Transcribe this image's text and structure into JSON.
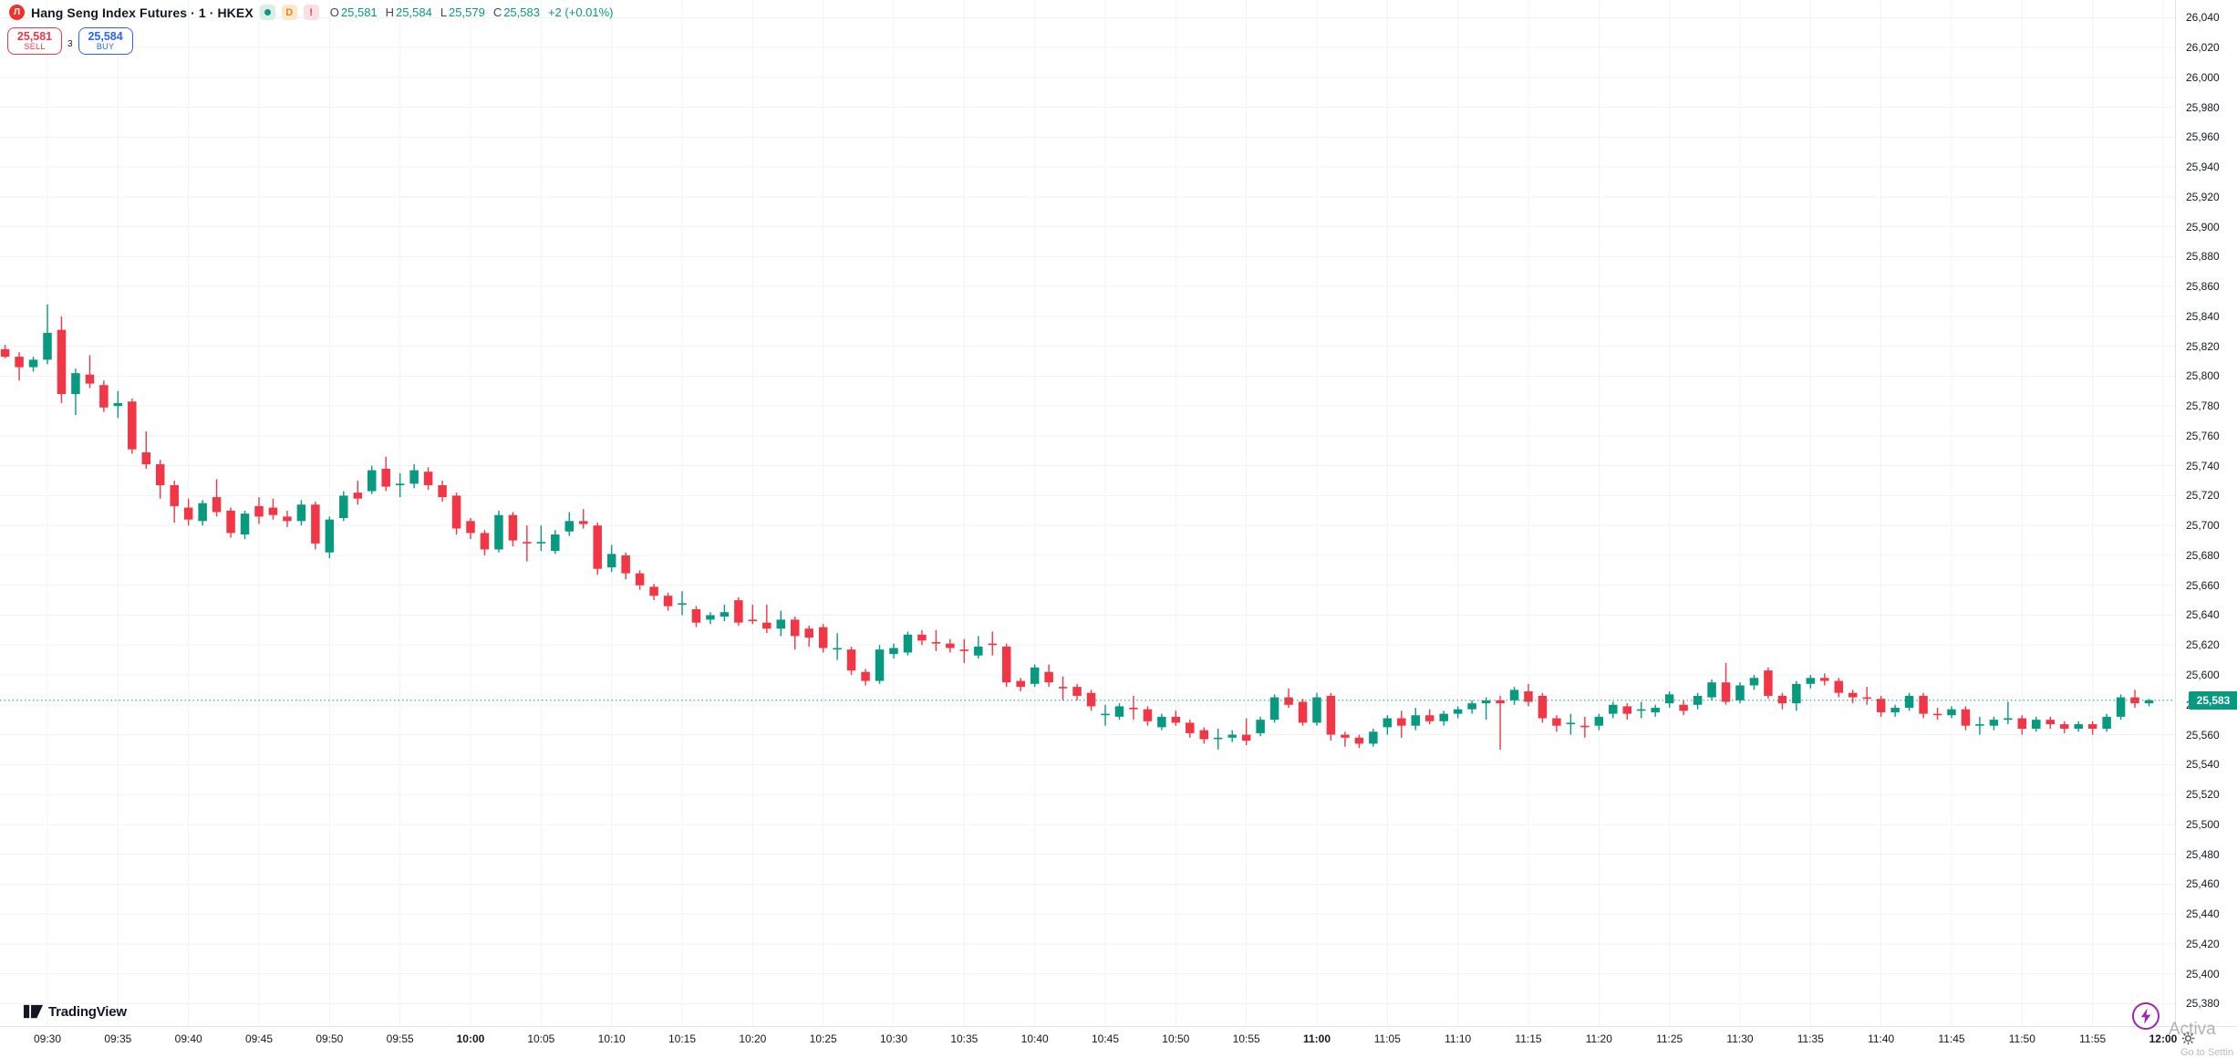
{
  "header": {
    "logo_glyph": "Л",
    "symbol_title": "Hang Seng Index Futures · 1 · HKEX",
    "badges": {
      "interval": "D",
      "alert": "!"
    },
    "ohlc": {
      "o_label": "O",
      "o": "25,581",
      "h_label": "H",
      "h": "25,584",
      "l_label": "L",
      "l": "25,579",
      "c_label": "C",
      "c": "25,583",
      "change": "+2 (+0.01%)"
    }
  },
  "order_panel": {
    "sell_price": "25,581",
    "sell_label": "SELL",
    "spread": "3",
    "buy_price": "25,584",
    "buy_label": "BUY"
  },
  "price_axis": {
    "min": 25380,
    "max": 26040,
    "step": 20,
    "current_price_label": "25,583"
  },
  "time_axis": {
    "labels": [
      "09:30",
      "09:35",
      "09:40",
      "09:45",
      "09:50",
      "09:55",
      "10:00",
      "10:05",
      "10:10",
      "10:15",
      "10:20",
      "10:25",
      "10:30",
      "10:35",
      "10:40",
      "10:45",
      "10:50",
      "10:55",
      "11:00",
      "11:05",
      "11:10",
      "11:15",
      "11:20",
      "11:25",
      "11:30",
      "11:35",
      "11:40",
      "11:45",
      "11:50",
      "11:55",
      "12:00"
    ],
    "bold_labels": [
      "10:00",
      "11:00",
      "12:00"
    ]
  },
  "footer": {
    "brand": "TradingView"
  },
  "watermark": {
    "line1": "Activa",
    "line2": "Go to Settin"
  },
  "colors": {
    "up": "#089981",
    "down": "#f23645",
    "buy_blue": "#2962ff",
    "sell_red": "#f23645",
    "grid": "#f0f3fa",
    "axis_text": "#131722",
    "current_price_bg": "#089981",
    "status_purple": "#9c27b0"
  },
  "chart_data": {
    "type": "candlestick",
    "title": "Hang Seng Index Futures",
    "interval": "1",
    "exchange": "HKEX",
    "x_range": [
      "09:27",
      "11:59"
    ],
    "y_range": [
      25380,
      26040
    ],
    "grid": true,
    "last_price": 25583,
    "columns": [
      "time",
      "open",
      "high",
      "low",
      "close"
    ],
    "candles": [
      [
        "09:27",
        25818,
        25821,
        25812,
        25813
      ],
      [
        "09:28",
        25813,
        25816,
        25797,
        25806
      ],
      [
        "09:29",
        25806,
        25813,
        25803,
        25811
      ],
      [
        "09:30",
        25811,
        25848,
        25808,
        25829
      ],
      [
        "09:31",
        25831,
        25840,
        25782,
        25788
      ],
      [
        "09:32",
        25788,
        25805,
        25774,
        25802
      ],
      [
        "09:33",
        25801,
        25814,
        25792,
        25795
      ],
      [
        "09:34",
        25794,
        25797,
        25776,
        25779
      ],
      [
        "09:35",
        25780,
        25790,
        25772,
        25782
      ],
      [
        "09:36",
        25783,
        25785,
        25748,
        25751
      ],
      [
        "09:37",
        25749,
        25763,
        25738,
        25741
      ],
      [
        "09:38",
        25741,
        25744,
        25718,
        25727
      ],
      [
        "09:39",
        25727,
        25730,
        25702,
        25713
      ],
      [
        "09:40",
        25712,
        25718,
        25700,
        25704
      ],
      [
        "09:41",
        25703,
        25717,
        25700,
        25715
      ],
      [
        "09:42",
        25719,
        25731,
        25706,
        25709
      ],
      [
        "09:43",
        25710,
        25712,
        25692,
        25695
      ],
      [
        "09:44",
        25694,
        25710,
        25691,
        25708
      ],
      [
        "09:45",
        25713,
        25719,
        25701,
        25706
      ],
      [
        "09:46",
        25712,
        25718,
        25704,
        25707
      ],
      [
        "09:47",
        25706,
        25710,
        25699,
        25703
      ],
      [
        "09:48",
        25703,
        25717,
        25700,
        25714
      ],
      [
        "09:49",
        25714,
        25716,
        25684,
        25688
      ],
      [
        "09:50",
        25682,
        25706,
        25678,
        25704
      ],
      [
        "09:51",
        25705,
        25723,
        25703,
        25720
      ],
      [
        "09:52",
        25722,
        25730,
        25714,
        25718
      ],
      [
        "09:53",
        25723,
        25740,
        25721,
        25737
      ],
      [
        "09:54",
        25738,
        25746,
        25723,
        25726
      ],
      [
        "09:55",
        25727,
        25735,
        25719,
        25728
      ],
      [
        "09:56",
        25728,
        25741,
        25725,
        25737
      ],
      [
        "09:57",
        25736,
        25739,
        25724,
        25727
      ],
      [
        "09:58",
        25727,
        25730,
        25716,
        25719
      ],
      [
        "09:59",
        25720,
        25722,
        25694,
        25698
      ],
      [
        "10:00",
        25703,
        25705,
        25691,
        25695
      ],
      [
        "10:01",
        25695,
        25697,
        25680,
        25684
      ],
      [
        "10:02",
        25684,
        25710,
        25682,
        25707
      ],
      [
        "10:03",
        25707,
        25709,
        25686,
        25690
      ],
      [
        "10:04",
        25689,
        25700,
        25676,
        25688
      ],
      [
        "10:05",
        25688,
        25700,
        25683,
        25689
      ],
      [
        "10:06",
        25683,
        25697,
        25681,
        25694
      ],
      [
        "10:07",
        25696,
        25709,
        25693,
        25703
      ],
      [
        "10:08",
        25703,
        25711,
        25698,
        25701
      ],
      [
        "10:09",
        25700,
        25702,
        25667,
        25671
      ],
      [
        "10:10",
        25672,
        25687,
        25669,
        25681
      ],
      [
        "10:11",
        25680,
        25682,
        25664,
        25668
      ],
      [
        "10:12",
        25668,
        25670,
        25657,
        25660
      ],
      [
        "10:13",
        25659,
        25661,
        25650,
        25653
      ],
      [
        "10:14",
        25653,
        25655,
        25643,
        25646
      ],
      [
        "10:15",
        25647,
        25656,
        25640,
        25648
      ],
      [
        "10:16",
        25644,
        25646,
        25632,
        25635
      ],
      [
        "10:17",
        25637,
        25642,
        25634,
        25640
      ],
      [
        "10:18",
        25639,
        25647,
        25636,
        25642
      ],
      [
        "10:19",
        25650,
        25652,
        25633,
        25635
      ],
      [
        "10:20",
        25637,
        25647,
        25634,
        25636
      ],
      [
        "10:21",
        25635,
        25647,
        25628,
        25631
      ],
      [
        "10:22",
        25631,
        25643,
        25626,
        25637
      ],
      [
        "10:23",
        25637,
        25639,
        25617,
        25626
      ],
      [
        "10:24",
        25631,
        25633,
        25619,
        25625
      ],
      [
        "10:25",
        25632,
        25634,
        25615,
        25618
      ],
      [
        "10:26",
        25617,
        25628,
        25610,
        25618
      ],
      [
        "10:27",
        25617,
        25619,
        25600,
        25603
      ],
      [
        "10:28",
        25602,
        25604,
        25593,
        25596
      ],
      [
        "10:29",
        25596,
        25620,
        25594,
        25617
      ],
      [
        "10:30",
        25614,
        25621,
        25611,
        25618
      ],
      [
        "10:31",
        25615,
        25629,
        25613,
        25627
      ],
      [
        "10:32",
        25627,
        25630,
        25620,
        25623
      ],
      [
        "10:33",
        25622,
        25630,
        25616,
        25621
      ],
      [
        "10:34",
        25621,
        25624,
        25615,
        25618
      ],
      [
        "10:35",
        25617,
        25624,
        25608,
        25616
      ],
      [
        "10:36",
        25613,
        25626,
        25611,
        25619
      ],
      [
        "10:37",
        25621,
        25629,
        25613,
        25620
      ],
      [
        "10:38",
        25619,
        25621,
        25592,
        25595
      ],
      [
        "10:39",
        25596,
        25598,
        25589,
        25592
      ],
      [
        "10:40",
        25594,
        25607,
        25592,
        25605
      ],
      [
        "10:41",
        25602,
        25607,
        25592,
        25595
      ],
      [
        "10:42",
        25592,
        25599,
        25583,
        25591
      ],
      [
        "10:43",
        25592,
        25594,
        25583,
        25586
      ],
      [
        "10:44",
        25588,
        25590,
        25576,
        25579
      ],
      [
        "10:45",
        25573,
        25580,
        25566,
        25574
      ],
      [
        "10:46",
        25572,
        25581,
        25570,
        25579
      ],
      [
        "10:47",
        25578,
        25586,
        25570,
        25577
      ],
      [
        "10:48",
        25577,
        25579,
        25566,
        25569
      ],
      [
        "10:49",
        25565,
        25574,
        25563,
        25572
      ],
      [
        "10:50",
        25572,
        25576,
        25566,
        25568
      ],
      [
        "10:51",
        25568,
        25570,
        25558,
        25561
      ],
      [
        "10:52",
        25563,
        25565,
        25554,
        25557
      ],
      [
        "10:53",
        25557,
        25564,
        25550,
        25558
      ],
      [
        "10:54",
        25558,
        25563,
        25555,
        25560
      ],
      [
        "10:55",
        25560,
        25571,
        25553,
        25556
      ],
      [
        "10:56",
        25561,
        25572,
        25559,
        25570
      ],
      [
        "10:57",
        25570,
        25587,
        25568,
        25585
      ],
      [
        "10:58",
        25585,
        25591,
        25578,
        25580
      ],
      [
        "10:59",
        25582,
        25584,
        25566,
        25568
      ],
      [
        "11:00",
        25568,
        25588,
        25566,
        25585
      ],
      [
        "11:01",
        25586,
        25588,
        25556,
        25560
      ],
      [
        "11:02",
        25560,
        25562,
        25552,
        25558
      ],
      [
        "11:03",
        25558,
        25560,
        25551,
        25554
      ],
      [
        "11:04",
        25554,
        25564,
        25552,
        25562
      ],
      [
        "11:05",
        25565,
        25573,
        25560,
        25571
      ],
      [
        "11:06",
        25571,
        25576,
        25558,
        25566
      ],
      [
        "11:07",
        25566,
        25578,
        25563,
        25573
      ],
      [
        "11:08",
        25573,
        25577,
        25567,
        25569
      ],
      [
        "11:09",
        25569,
        25576,
        25566,
        25574
      ],
      [
        "11:10",
        25574,
        25579,
        25571,
        25577
      ],
      [
        "11:11",
        25577,
        25583,
        25574,
        25581
      ],
      [
        "11:12",
        25581,
        25585,
        25570,
        25583
      ],
      [
        "11:13",
        25583,
        25586,
        25550,
        25581
      ],
      [
        "11:14",
        25583,
        25592,
        25580,
        25590
      ],
      [
        "11:15",
        25589,
        25594,
        25579,
        25582
      ],
      [
        "11:16",
        25586,
        25588,
        25568,
        25571
      ],
      [
        "11:17",
        25571,
        25573,
        25562,
        25566
      ],
      [
        "11:18",
        25567,
        25574,
        25560,
        25568
      ],
      [
        "11:19",
        25566,
        25572,
        25558,
        25565
      ],
      [
        "11:20",
        25566,
        25574,
        25563,
        25572
      ],
      [
        "11:21",
        25574,
        25582,
        25571,
        25580
      ],
      [
        "11:22",
        25579,
        25581,
        25570,
        25574
      ],
      [
        "11:23",
        25576,
        25582,
        25571,
        25577
      ],
      [
        "11:24",
        25575,
        25580,
        25572,
        25578
      ],
      [
        "11:25",
        25581,
        25589,
        25578,
        25587
      ],
      [
        "11:26",
        25580,
        25583,
        25573,
        25576
      ],
      [
        "11:27",
        25580,
        25588,
        25577,
        25586
      ],
      [
        "11:28",
        25585,
        25597,
        25583,
        25595
      ],
      [
        "11:29",
        25595,
        25608,
        25580,
        25582
      ],
      [
        "11:30",
        25583,
        25595,
        25581,
        25593
      ],
      [
        "11:31",
        25593,
        25600,
        25590,
        25598
      ],
      [
        "11:32",
        25603,
        25605,
        25584,
        25586
      ],
      [
        "11:33",
        25586,
        25588,
        25577,
        25581
      ],
      [
        "11:34",
        25581,
        25596,
        25576,
        25594
      ],
      [
        "11:35",
        25594,
        25600,
        25591,
        25598
      ],
      [
        "11:36",
        25598,
        25601,
        25593,
        25596
      ],
      [
        "11:37",
        25596,
        25598,
        25585,
        25588
      ],
      [
        "11:38",
        25588,
        25590,
        25581,
        25585
      ],
      [
        "11:39",
        25585,
        25592,
        25580,
        25584
      ],
      [
        "11:40",
        25584,
        25586,
        25572,
        25575
      ],
      [
        "11:41",
        25575,
        25580,
        25572,
        25578
      ],
      [
        "11:42",
        25578,
        25588,
        25576,
        25586
      ],
      [
        "11:43",
        25586,
        25588,
        25571,
        25574
      ],
      [
        "11:44",
        25574,
        25578,
        25570,
        25573
      ],
      [
        "11:45",
        25573,
        25579,
        25571,
        25577
      ],
      [
        "11:46",
        25577,
        25579,
        25563,
        25566
      ],
      [
        "11:47",
        25566,
        25572,
        25560,
        25567
      ],
      [
        "11:48",
        25566,
        25572,
        25563,
        25570
      ],
      [
        "11:49",
        25570,
        25582,
        25567,
        25571
      ],
      [
        "11:50",
        25571,
        25573,
        25560,
        25564
      ],
      [
        "11:51",
        25564,
        25572,
        25562,
        25570
      ],
      [
        "11:52",
        25570,
        25572,
        25564,
        25567
      ],
      [
        "11:53",
        25567,
        25569,
        25561,
        25564
      ],
      [
        "11:54",
        25564,
        25569,
        25562,
        25567
      ],
      [
        "11:55",
        25567,
        25569,
        25560,
        25564
      ],
      [
        "11:56",
        25564,
        25574,
        25562,
        25572
      ],
      [
        "11:57",
        25572,
        25587,
        25570,
        25585
      ],
      [
        "11:58",
        25585,
        25590,
        25578,
        25581
      ],
      [
        "11:59",
        25581,
        25584,
        25579,
        25583
      ]
    ]
  }
}
